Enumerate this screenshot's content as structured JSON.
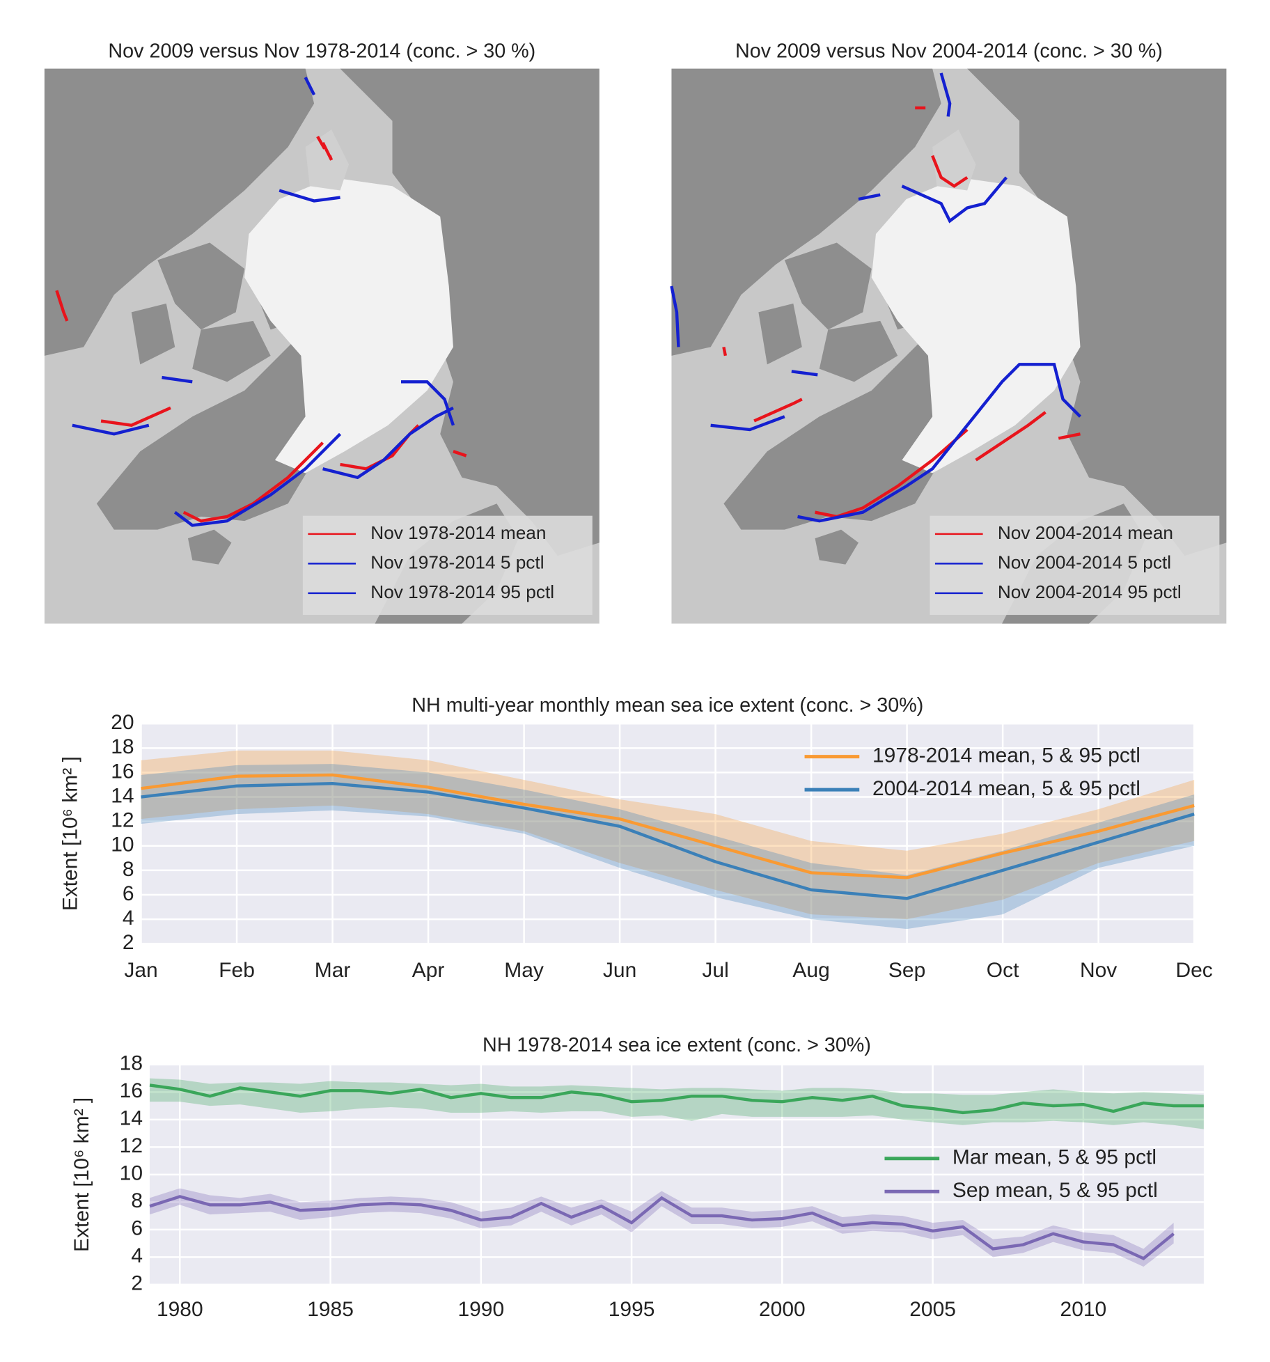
{
  "maps": [
    {
      "title": "Nov 2009 versus Nov 1978-2014 (conc. > 30 %)",
      "legend": [
        {
          "label": "Nov 1978-2014 mean",
          "color": "#e8141c"
        },
        {
          "label": "Nov 1978-2014 5 pctl",
          "color": "#1420d0"
        },
        {
          "label": "Nov 1978-2014 95 pctl",
          "color": "#1420d0"
        }
      ]
    },
    {
      "title": "Nov 2009 versus Nov 2004-2014 (conc. > 30 %)",
      "legend": [
        {
          "label": "Nov 2004-2014 mean",
          "color": "#e8141c"
        },
        {
          "label": "Nov 2004-2014 5 pctl",
          "color": "#1420d0"
        },
        {
          "label": "Nov 2004-2014 95 pctl",
          "color": "#1420d0"
        }
      ]
    }
  ],
  "chart_data": [
    {
      "type": "line",
      "title": "NH multi-year monthly mean sea ice extent (conc. > 30%)",
      "ylabel": "Extent [10⁶ km² ]",
      "categories": [
        "Jan",
        "Feb",
        "Mar",
        "Apr",
        "May",
        "Jun",
        "Jul",
        "Aug",
        "Sep",
        "Oct",
        "Nov",
        "Dec"
      ],
      "ylim": [
        2,
        20
      ],
      "yticks": [
        2,
        4,
        6,
        8,
        10,
        12,
        14,
        16,
        18,
        20
      ],
      "grid": true,
      "legend": "upper right",
      "series": [
        {
          "name": "1978-2014 mean, 5 & 95 pctl",
          "color": "#f99a33",
          "values": [
            14.7,
            15.7,
            15.8,
            14.8,
            13.4,
            12.2,
            10.0,
            7.8,
            7.4,
            9.4,
            11.2,
            13.3
          ],
          "p5": [
            12.2,
            13.0,
            13.3,
            12.6,
            11.2,
            8.6,
            6.4,
            4.4,
            4.0,
            5.6,
            8.6,
            10.4
          ],
          "p95": [
            17.0,
            17.8,
            17.8,
            17.0,
            15.4,
            13.8,
            12.6,
            10.4,
            9.6,
            11.0,
            13.0,
            15.4
          ]
        },
        {
          "name": "2004-2014 mean, 5 & 95 pctl",
          "color": "#3b80b8",
          "values": [
            14.0,
            14.9,
            15.1,
            14.4,
            13.1,
            11.6,
            8.7,
            6.4,
            5.7,
            8.0,
            10.3,
            12.6
          ],
          "p5": [
            11.8,
            12.6,
            12.9,
            12.4,
            11.0,
            8.2,
            5.8,
            4.0,
            3.2,
            4.4,
            8.2,
            10.0
          ],
          "p95": [
            15.8,
            16.6,
            16.7,
            16.0,
            14.6,
            13.0,
            10.8,
            8.6,
            7.6,
            9.6,
            11.9,
            14.2
          ]
        }
      ]
    },
    {
      "type": "line",
      "title": "NH 1978-2014 sea ice extent (conc. > 30%)",
      "ylabel": "Extent [10⁶ km² ]",
      "x": [
        1979,
        1980,
        1981,
        1982,
        1983,
        1984,
        1985,
        1986,
        1987,
        1988,
        1989,
        1990,
        1991,
        1992,
        1993,
        1994,
        1995,
        1996,
        1997,
        1998,
        1999,
        2000,
        2001,
        2002,
        2003,
        2004,
        2005,
        2006,
        2007,
        2008,
        2009,
        2010,
        2011,
        2012,
        2013,
        2014
      ],
      "xlim": [
        1979,
        2014
      ],
      "xticks": [
        1980,
        1985,
        1990,
        1995,
        2000,
        2005,
        2010
      ],
      "ylim": [
        2,
        18
      ],
      "yticks": [
        2,
        4,
        6,
        8,
        10,
        12,
        14,
        16,
        18
      ],
      "grid": true,
      "legend": "center right",
      "series": [
        {
          "name": "Mar mean, 5 & 95 pctl",
          "color": "#3aa65a",
          "values": [
            16.5,
            16.2,
            15.7,
            16.3,
            16.0,
            15.7,
            16.1,
            16.1,
            15.9,
            16.2,
            15.6,
            15.9,
            15.6,
            15.6,
            16.0,
            15.8,
            15.3,
            15.4,
            15.7,
            15.7,
            15.4,
            15.3,
            15.6,
            15.4,
            15.7,
            15.0,
            14.8,
            14.5,
            14.7,
            15.2,
            15.0,
            15.1,
            14.6,
            15.2,
            15.0,
            15.0
          ],
          "p5": [
            15.3,
            15.3,
            15.0,
            15.1,
            14.8,
            14.5,
            14.6,
            14.8,
            14.9,
            14.8,
            14.5,
            14.5,
            14.6,
            14.5,
            14.6,
            14.6,
            14.2,
            14.3,
            13.9,
            14.4,
            14.2,
            14.2,
            14.2,
            14.2,
            14.3,
            14.0,
            13.8,
            13.6,
            13.8,
            13.8,
            13.9,
            13.8,
            13.6,
            13.8,
            13.6,
            13.3
          ],
          "p95": [
            17.0,
            16.9,
            16.6,
            16.7,
            16.7,
            16.6,
            16.8,
            16.7,
            16.7,
            16.6,
            16.5,
            16.6,
            16.4,
            16.4,
            16.5,
            16.4,
            16.3,
            16.2,
            16.3,
            16.3,
            16.2,
            16.1,
            16.3,
            16.3,
            16.2,
            15.9,
            15.9,
            15.8,
            15.8,
            16.0,
            16.2,
            16.0,
            15.9,
            16.0,
            15.9,
            15.8
          ]
        },
        {
          "name": "Sep mean, 5 & 95 pctl",
          "color": "#7a68b3",
          "values": [
            7.7,
            8.4,
            7.8,
            7.8,
            8.0,
            7.4,
            7.5,
            7.8,
            7.9,
            7.8,
            7.4,
            6.7,
            6.9,
            7.9,
            6.9,
            7.7,
            6.5,
            8.3,
            7.0,
            7.0,
            6.7,
            6.8,
            7.2,
            6.3,
            6.5,
            6.4,
            5.9,
            6.2,
            4.6,
            4.9,
            5.7,
            5.1,
            4.9,
            3.9,
            5.7,
            null
          ],
          "p5": [
            7.1,
            7.8,
            7.1,
            7.2,
            7.3,
            6.7,
            6.9,
            7.2,
            7.3,
            7.2,
            6.8,
            6.1,
            6.3,
            7.3,
            6.3,
            7.1,
            5.8,
            7.7,
            6.4,
            6.4,
            6.1,
            6.2,
            6.6,
            5.7,
            5.9,
            5.8,
            5.3,
            5.6,
            4.0,
            4.3,
            5.1,
            4.5,
            4.3,
            3.3,
            5.0,
            null
          ],
          "p95": [
            8.3,
            9.0,
            8.5,
            8.3,
            8.6,
            8.0,
            8.1,
            8.3,
            8.4,
            8.3,
            8.0,
            7.3,
            7.6,
            8.4,
            7.6,
            8.2,
            7.3,
            8.8,
            7.6,
            7.6,
            7.3,
            7.4,
            7.7,
            6.9,
            7.1,
            7.0,
            6.5,
            6.7,
            5.3,
            5.5,
            6.3,
            5.8,
            5.6,
            4.6,
            6.5,
            null
          ]
        }
      ]
    }
  ]
}
